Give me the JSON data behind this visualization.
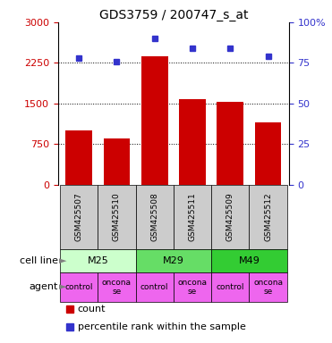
{
  "title": "GDS3759 / 200747_s_at",
  "samples": [
    "GSM425507",
    "GSM425510",
    "GSM425508",
    "GSM425511",
    "GSM425509",
    "GSM425512"
  ],
  "counts": [
    1000,
    850,
    2380,
    1580,
    1530,
    1150
  ],
  "percentile_ranks": [
    78,
    76,
    90,
    84,
    84,
    79
  ],
  "left_ylim": [
    0,
    3000
  ],
  "left_yticks": [
    0,
    750,
    1500,
    2250,
    3000
  ],
  "right_ylim": [
    0,
    100
  ],
  "right_yticks": [
    0,
    25,
    50,
    75,
    100
  ],
  "right_ylabels": [
    "0",
    "25",
    "50",
    "75",
    "100%"
  ],
  "bar_color": "#cc0000",
  "dot_color": "#3333cc",
  "cell_lines": [
    {
      "label": "M25",
      "span": [
        0,
        2
      ],
      "color": "#ccffcc"
    },
    {
      "label": "M29",
      "span": [
        2,
        4
      ],
      "color": "#66dd66"
    },
    {
      "label": "M49",
      "span": [
        4,
        6
      ],
      "color": "#33cc33"
    }
  ],
  "agents": [
    "control",
    "onconase",
    "control",
    "onconase",
    "control",
    "onconase"
  ],
  "agent_color": "#ee66ee",
  "sample_bg_color": "#cccccc",
  "left_tick_color": "#cc0000",
  "right_tick_color": "#3333cc",
  "legend_items": [
    {
      "color": "#cc0000",
      "label": "count"
    },
    {
      "color": "#3333cc",
      "label": "percentile rank within the sample"
    }
  ]
}
